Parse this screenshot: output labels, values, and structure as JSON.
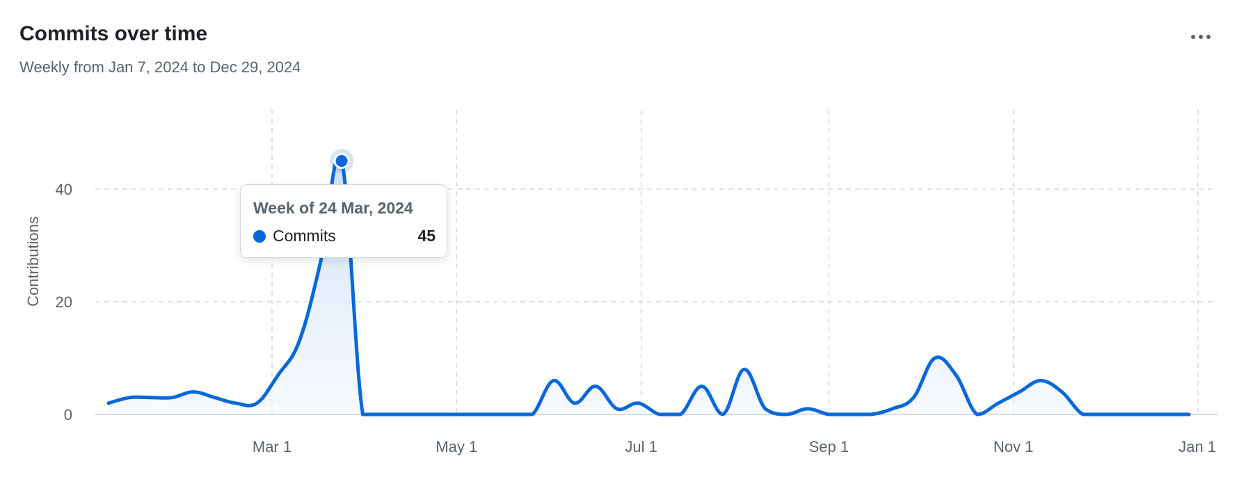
{
  "header": {
    "title": "Commits over time",
    "subtitle": "Weekly from Jan 7, 2024 to Dec 29, 2024",
    "menu_icon": "kebab-horizontal-icon"
  },
  "colors": {
    "line": "#0969da",
    "area_top": "#dbe8f8",
    "grid": "#d1d9e0",
    "axis_text": "#59636e"
  },
  "tooltip": {
    "title": "Week of 24 Mar, 2024",
    "series": "Commits",
    "value": "45"
  },
  "chart_data": {
    "type": "area",
    "ylabel": "Contributions",
    "ylim": [
      0,
      50
    ],
    "y_ticks": [
      "0",
      "20",
      "40"
    ],
    "x_ticks": [
      "Mar 1",
      "May 1",
      "Jul 1",
      "Sep 1",
      "Nov 1",
      "Jan 1"
    ],
    "x_tick_dates": [
      "2024-03-01",
      "2024-05-01",
      "2024-07-01",
      "2024-09-01",
      "2024-11-01",
      "2025-01-01"
    ],
    "grid": true,
    "highlighted_point": {
      "date": "2024-03-24",
      "value": 45
    },
    "series": [
      {
        "name": "Commits",
        "points": [
          [
            "2024-01-07",
            2
          ],
          [
            "2024-01-14",
            3
          ],
          [
            "2024-01-21",
            3
          ],
          [
            "2024-01-28",
            3
          ],
          [
            "2024-02-04",
            4
          ],
          [
            "2024-02-11",
            3
          ],
          [
            "2024-02-18",
            2
          ],
          [
            "2024-02-25",
            2
          ],
          [
            "2024-03-03",
            7
          ],
          [
            "2024-03-10",
            13
          ],
          [
            "2024-03-17",
            27
          ],
          [
            "2024-03-24",
            45
          ],
          [
            "2024-03-31",
            0
          ],
          [
            "2024-04-07",
            0
          ],
          [
            "2024-04-14",
            0
          ],
          [
            "2024-04-21",
            0
          ],
          [
            "2024-04-28",
            0
          ],
          [
            "2024-05-05",
            0
          ],
          [
            "2024-05-12",
            0
          ],
          [
            "2024-05-19",
            0
          ],
          [
            "2024-05-26",
            0
          ],
          [
            "2024-06-02",
            6
          ],
          [
            "2024-06-09",
            2
          ],
          [
            "2024-06-16",
            5
          ],
          [
            "2024-06-23",
            1
          ],
          [
            "2024-06-30",
            2
          ],
          [
            "2024-07-07",
            0
          ],
          [
            "2024-07-14",
            0
          ],
          [
            "2024-07-21",
            5
          ],
          [
            "2024-07-28",
            0
          ],
          [
            "2024-08-04",
            8
          ],
          [
            "2024-08-11",
            1
          ],
          [
            "2024-08-18",
            0
          ],
          [
            "2024-08-25",
            1
          ],
          [
            "2024-09-01",
            0
          ],
          [
            "2024-09-08",
            0
          ],
          [
            "2024-09-15",
            0
          ],
          [
            "2024-09-22",
            1
          ],
          [
            "2024-09-29",
            3
          ],
          [
            "2024-10-06",
            10
          ],
          [
            "2024-10-13",
            7
          ],
          [
            "2024-10-20",
            0
          ],
          [
            "2024-10-27",
            2
          ],
          [
            "2024-11-03",
            4
          ],
          [
            "2024-11-10",
            6
          ],
          [
            "2024-11-17",
            4
          ],
          [
            "2024-11-24",
            0
          ],
          [
            "2024-12-01",
            0
          ],
          [
            "2024-12-08",
            0
          ],
          [
            "2024-12-15",
            0
          ],
          [
            "2024-12-22",
            0
          ],
          [
            "2024-12-29",
            0
          ]
        ]
      }
    ]
  }
}
